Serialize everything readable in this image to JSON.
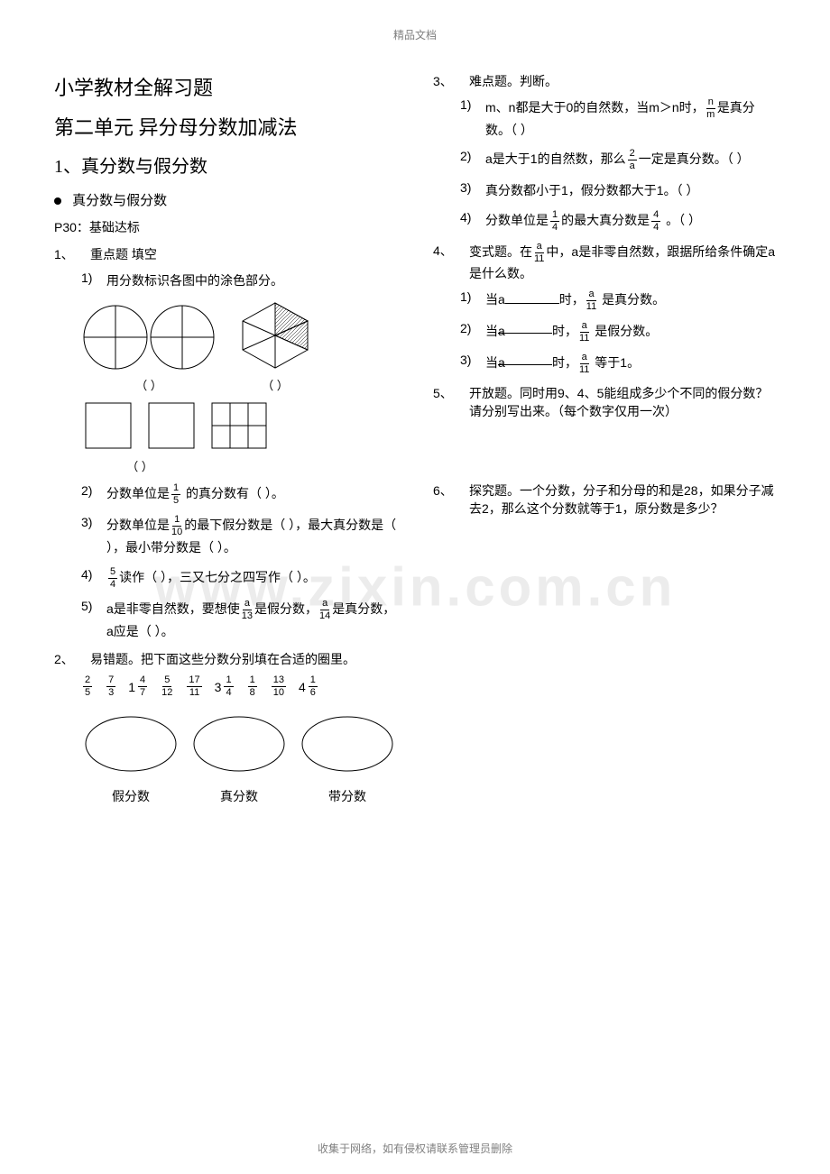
{
  "header": "精品文档",
  "footer": "收集于网络，如有侵权请联系管理员删除",
  "watermark": "www.zixin.com.cn",
  "titles": {
    "main": "小学教材全解习题",
    "unit": "第二单元 异分母分数加减法",
    "section": "1、真分数与假分数",
    "bullet": "真分数与假分数",
    "pline": "P30：基础达标"
  },
  "q1": {
    "label": "1、",
    "text": "重点题 填空",
    "s1": {
      "n": "1)",
      "t": "用分数标识各图中的涂色部分。"
    },
    "fig_labels": {
      "left": "（     ）",
      "right": "（     ）",
      "bottom": "（     ）"
    },
    "s2": {
      "n": "2)",
      "t_a": "分数单位是",
      "t_b": " 的真分数有（            ）。"
    },
    "s3": {
      "n": "3)",
      "t_a": "分数单位是",
      "t_b": "的最下假分数是（       ），最大真分数是（       ），最小带分数是（     ）。"
    },
    "s4": {
      "n": "4)",
      "t_a": "",
      "t_b": "读作（       ），三又七分之四写作（     ）。"
    },
    "s5": {
      "n": "5)",
      "t_a": "a是非零自然数，要想使",
      "t_b": "是假分数，",
      "t_c": "是真分数，a应是（     ）。"
    }
  },
  "q2": {
    "label": "2、",
    "text": "易错题。把下面这些分数分别填在合适的圈里。",
    "oval_labels": [
      "假分数",
      "真分数",
      "带分数"
    ]
  },
  "q3": {
    "label": "3、",
    "text": "难点题。判断。",
    "s1": {
      "n": "1)",
      "t": "m、n都是大于0的自然数，当m＞n时，",
      "t2": "是真分数。（   ）"
    },
    "s2": {
      "n": "2)",
      "t": "a是大于1的自然数，那么",
      "t2": "一定是真分数。（    ）"
    },
    "s3": {
      "n": "3)",
      "t": "真分数都小于1，假分数都大于1。（    ）"
    },
    "s4": {
      "n": "4)",
      "t": "分数单位是",
      "t2": "的最大真分数是",
      "t3": " 。（    ）"
    }
  },
  "q4": {
    "label": "4、",
    "text_a": "变式题。在",
    "text_b": "中，a是非零自然数，跟据所给条件确定a是什么数。",
    "s1": {
      "n": "1)",
      "t": "当a",
      "t2": "时，",
      "t3": " 是真分数。"
    },
    "s2": {
      "n": "2)",
      "t": "当",
      "t2": "时，",
      "t3": " 是假分数。"
    },
    "s3": {
      "n": "3)",
      "t": "当",
      "t2": "时，",
      "t3": " 等于1。"
    }
  },
  "q5": {
    "label": "5、",
    "text": "开放题。同时用9、4、5能组成多少个不同的假分数？请分别写出来。（每个数字仅用一次）"
  },
  "q6": {
    "label": "6、",
    "text": "探究题。一个分数，分子和分母的和是28，如果分子减去2，那么这个分数就等于1，原分数是多少？"
  },
  "fractions": {
    "one_fifth": {
      "n": "1",
      "d": "5"
    },
    "one_tenth": {
      "n": "1",
      "d": "10"
    },
    "five_fourth": {
      "n": "5",
      "d": "4"
    },
    "a_13": {
      "n": "a",
      "d": "13"
    },
    "a_14": {
      "n": "a",
      "d": "14"
    },
    "list": [
      {
        "type": "f",
        "n": "2",
        "d": "5"
      },
      {
        "type": "f",
        "n": "7",
        "d": "3"
      },
      {
        "type": "m",
        "w": "1",
        "n": "4",
        "d": "7"
      },
      {
        "type": "f",
        "n": "5",
        "d": "12"
      },
      {
        "type": "f",
        "n": "17",
        "d": "11"
      },
      {
        "type": "m",
        "w": "3",
        "n": "1",
        "d": "4"
      },
      {
        "type": "f",
        "n": "1",
        "d": "8"
      },
      {
        "type": "f",
        "n": "13",
        "d": "10"
      },
      {
        "type": "m",
        "w": "4",
        "n": "1",
        "d": "6"
      }
    ],
    "n_m": {
      "n": "n",
      "d": "m"
    },
    "two_a": {
      "n": "2",
      "d": "a"
    },
    "one_fourth": {
      "n": "1",
      "d": "4"
    },
    "four_fourth": {
      "n": "4",
      "d": "4"
    },
    "a_11": {
      "n": "a",
      "d": "11"
    }
  },
  "svg": {
    "circle_r": 35,
    "hex_r": 42,
    "stroke": "#000000",
    "fill_hatch": "#bfbfbf"
  }
}
